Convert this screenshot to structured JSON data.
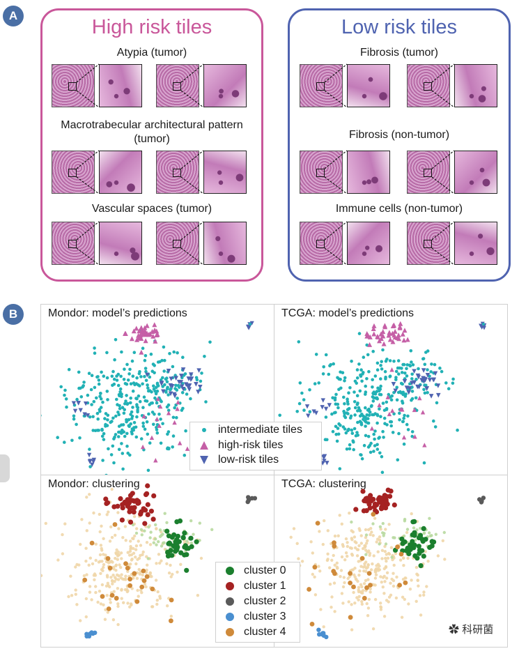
{
  "figure": {
    "panel_a": {
      "badge": "A",
      "high_risk": {
        "title": "High risk tiles",
        "color": "#c9579a",
        "categories": [
          "Atypia (tumor)",
          "Macrotrabecular architectural pattern (tumor)",
          "Vascular spaces (tumor)"
        ]
      },
      "low_risk": {
        "title": "Low risk tiles",
        "color": "#4f63b0",
        "categories": [
          "Fibrosis (tumor)",
          "Fibrosis (non-tumor)",
          "Immune cells (non-tumor)"
        ]
      }
    },
    "panel_b": {
      "badge": "B",
      "subplots": [
        {
          "title": "Mondor: model’s predictions"
        },
        {
          "title": "TCGA: model’s predictions"
        },
        {
          "title": "Mondor: clustering"
        },
        {
          "title": "TCGA: clustering"
        }
      ],
      "legend_predictions": [
        {
          "label": "intermediate tiles",
          "color": "#21b1b5",
          "marker": "circle"
        },
        {
          "label": "high-risk tiles",
          "color": "#c55fa6",
          "marker": "triangle-up"
        },
        {
          "label": "low-risk tiles",
          "color": "#4f63b0",
          "marker": "triangle-down"
        }
      ],
      "legend_clusters": [
        {
          "label": "cluster 0",
          "color": "#1b7f2e"
        },
        {
          "label": "cluster 1",
          "color": "#a52222"
        },
        {
          "label": "cluster 2",
          "color": "#5a5a5a"
        },
        {
          "label": "cluster 3",
          "color": "#4a8fd0"
        },
        {
          "label": "cluster 4",
          "color": "#cf8a3a"
        }
      ]
    },
    "watermark": "科研菌"
  }
}
